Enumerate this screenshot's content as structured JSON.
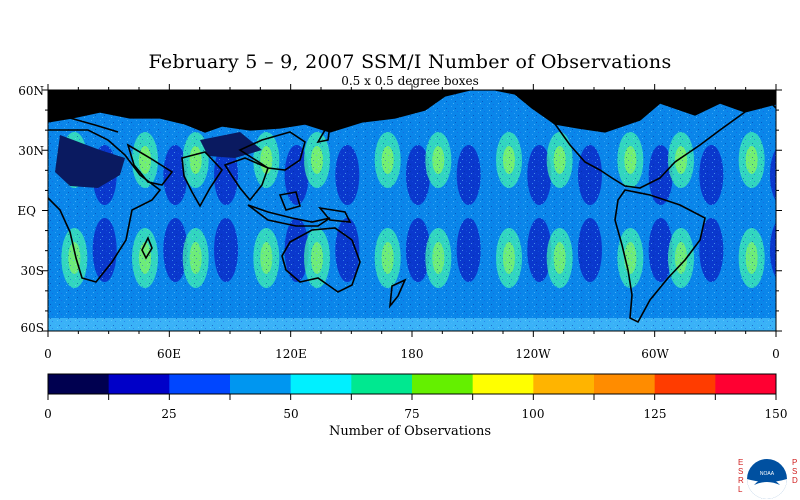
{
  "title": "February 5 – 9, 2007 SSM/I Number of Observations",
  "subtitle": "0.5 x 0.5 degree boxes",
  "lat_labels": [
    "60N",
    "30N",
    "EQ",
    "30S",
    "60S"
  ],
  "lon_labels": [
    "0",
    "60E",
    "120E",
    "180",
    "120W",
    "60W",
    "0"
  ],
  "colorbar": {
    "title": "Number of Observations",
    "tick_labels": [
      "0",
      "25",
      "50",
      "75",
      "100",
      "125",
      "150"
    ],
    "colors": [
      "#000050",
      "#0000c8",
      "#0046ff",
      "#0096f0",
      "#00f0ff",
      "#00e890",
      "#64f000",
      "#ffff00",
      "#ffb400",
      "#ff8c00",
      "#ff3c00",
      "#ff0032"
    ]
  },
  "logo": {
    "left_text": "ESRL",
    "right_text": "PSD",
    "center_text": "NOAA"
  },
  "map": {
    "lat_range": [
      -60,
      60
    ],
    "lon_range": [
      0,
      360
    ],
    "palette": {
      "land": "#000000",
      "coastline": "#000000",
      "ocean_base": "#0078e6"
    }
  }
}
